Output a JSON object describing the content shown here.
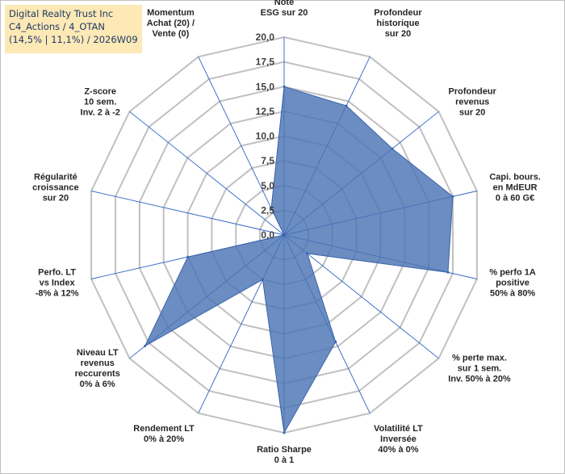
{
  "header": {
    "line1": "Digital Realty Trust Inc",
    "line2": "C4_Actions / 4_OTAN",
    "line3": "(14,5% | 11,1%) / 2026W09"
  },
  "colors": {
    "fill": "#4a74b4",
    "stroke": "#3a64a8",
    "grid": "#c0c0c0",
    "spoke": "#2e63c4",
    "title_bg": "#fde9b6"
  },
  "chart_data": {
    "type": "radar",
    "series_name": "Digital Realty Trust Inc",
    "rmin": 0,
    "rmax": 20,
    "tick_step": 2.5,
    "tick_labels": [
      "0,0",
      "2,5",
      "5,0",
      "7,5",
      "10,0",
      "12,5",
      "15,0",
      "17,5",
      "20,0"
    ],
    "axes": [
      {
        "label": [
          "Note",
          "ESG sur 20"
        ],
        "value": 15.0
      },
      {
        "label": [
          "Profondeur",
          "historique",
          "sur 20"
        ],
        "value": 14.5
      },
      {
        "label": [
          "Profondeur",
          "revenus",
          "sur 20"
        ],
        "value": 14.0
      },
      {
        "label": [
          "Capi. bours.",
          "en MdEUR",
          "0 à 60 G€"
        ],
        "value": 17.5
      },
      {
        "label": [
          "% perfo 1A",
          "positive",
          "50% à 80%"
        ],
        "value": 17.0
      },
      {
        "label": [
          "% perte max.",
          "sur 1 sem.",
          "Inv. 50% à 20%"
        ],
        "value": 3.0
      },
      {
        "label": [
          "Volatilité LT",
          "Inversée",
          "40% à 0%"
        ],
        "value": 12.0
      },
      {
        "label": [
          "Ratio Sharpe",
          "0 à 1"
        ],
        "value": 20.0
      },
      {
        "label": [
          "Rendement LT",
          "0% à 20%"
        ],
        "value": 5.0
      },
      {
        "label": [
          "Niveau LT",
          "revenus",
          "reccurents",
          "0% à 6%"
        ],
        "value": 18.0
      },
      {
        "label": [
          "Perfo. LT",
          "vs Index",
          "-8% à 12%"
        ],
        "value": 10.0
      },
      {
        "label": [
          "Régularité",
          "croissance",
          "sur 20"
        ],
        "value": 0.0
      },
      {
        "label": [
          "Z-score",
          "10 sem.",
          "Inv. 2 à -2"
        ],
        "value": 0.0
      },
      {
        "label": [
          "Momentum",
          "Achat (20) /",
          "Vente (0)"
        ],
        "value": 3.0
      }
    ]
  }
}
